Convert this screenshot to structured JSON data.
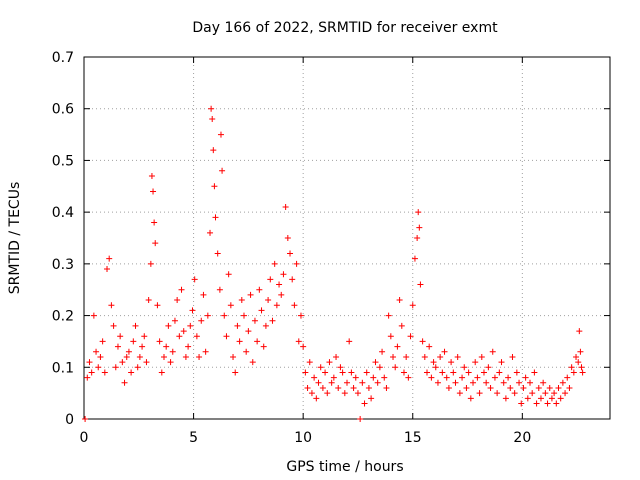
{
  "chart_data": {
    "type": "scatter",
    "title": "Day 166 of 2022, SRMTID for receiver exmt",
    "xlabel": "GPS time / hours",
    "ylabel": "SRMTID / TECUs",
    "xlim": [
      0,
      24
    ],
    "ylim": [
      0,
      0.7
    ],
    "xticks": [
      {
        "value": 0,
        "label": "0"
      },
      {
        "value": 5,
        "label": "5"
      },
      {
        "value": 10,
        "label": "10"
      },
      {
        "value": 15,
        "label": "15"
      },
      {
        "value": 20,
        "label": "20"
      }
    ],
    "yticks": [
      {
        "value": 0,
        "label": "0"
      },
      {
        "value": 0.1,
        "label": "0.1"
      },
      {
        "value": 0.2,
        "label": "0.2"
      },
      {
        "value": 0.3,
        "label": "0.3"
      },
      {
        "value": 0.4,
        "label": "0.4"
      },
      {
        "value": 0.5,
        "label": "0.5"
      },
      {
        "value": 0.6,
        "label": "0.6"
      },
      {
        "value": 0.7,
        "label": "0.7"
      }
    ],
    "grid": true,
    "marker": "+",
    "series": [
      {
        "name": "SRMTID",
        "color": "#ff0000",
        "points": [
          [
            0.05,
            0.0
          ],
          [
            0.15,
            0.08
          ],
          [
            0.25,
            0.11
          ],
          [
            0.35,
            0.09
          ],
          [
            0.45,
            0.2
          ],
          [
            0.55,
            0.13
          ],
          [
            0.65,
            0.1
          ],
          [
            0.75,
            0.12
          ],
          [
            0.85,
            0.15
          ],
          [
            0.95,
            0.09
          ],
          [
            1.05,
            0.29
          ],
          [
            1.15,
            0.31
          ],
          [
            1.25,
            0.22
          ],
          [
            1.35,
            0.18
          ],
          [
            1.45,
            0.1
          ],
          [
            1.55,
            0.14
          ],
          [
            1.65,
            0.16
          ],
          [
            1.75,
            0.11
          ],
          [
            1.85,
            0.07
          ],
          [
            1.95,
            0.12
          ],
          [
            2.05,
            0.13
          ],
          [
            2.15,
            0.09
          ],
          [
            2.25,
            0.15
          ],
          [
            2.35,
            0.18
          ],
          [
            2.45,
            0.1
          ],
          [
            2.55,
            0.12
          ],
          [
            2.65,
            0.14
          ],
          [
            2.75,
            0.16
          ],
          [
            2.85,
            0.11
          ],
          [
            2.95,
            0.23
          ],
          [
            3.05,
            0.3
          ],
          [
            3.1,
            0.47
          ],
          [
            3.15,
            0.44
          ],
          [
            3.2,
            0.38
          ],
          [
            3.25,
            0.34
          ],
          [
            3.35,
            0.22
          ],
          [
            3.45,
            0.15
          ],
          [
            3.55,
            0.09
          ],
          [
            3.65,
            0.12
          ],
          [
            3.75,
            0.14
          ],
          [
            3.85,
            0.18
          ],
          [
            3.95,
            0.11
          ],
          [
            4.05,
            0.13
          ],
          [
            4.15,
            0.19
          ],
          [
            4.25,
            0.23
          ],
          [
            4.35,
            0.16
          ],
          [
            4.45,
            0.25
          ],
          [
            4.55,
            0.17
          ],
          [
            4.65,
            0.12
          ],
          [
            4.75,
            0.14
          ],
          [
            4.85,
            0.18
          ],
          [
            4.95,
            0.21
          ],
          [
            5.05,
            0.27
          ],
          [
            5.15,
            0.16
          ],
          [
            5.25,
            0.12
          ],
          [
            5.35,
            0.19
          ],
          [
            5.45,
            0.24
          ],
          [
            5.55,
            0.13
          ],
          [
            5.65,
            0.2
          ],
          [
            5.75,
            0.36
          ],
          [
            5.8,
            0.6
          ],
          [
            5.85,
            0.58
          ],
          [
            5.9,
            0.52
          ],
          [
            5.95,
            0.45
          ],
          [
            6.0,
            0.39
          ],
          [
            6.1,
            0.32
          ],
          [
            6.2,
            0.25
          ],
          [
            6.25,
            0.55
          ],
          [
            6.3,
            0.48
          ],
          [
            6.4,
            0.2
          ],
          [
            6.5,
            0.16
          ],
          [
            6.6,
            0.28
          ],
          [
            6.7,
            0.22
          ],
          [
            6.8,
            0.12
          ],
          [
            6.9,
            0.09
          ],
          [
            7.0,
            0.18
          ],
          [
            7.1,
            0.15
          ],
          [
            7.2,
            0.23
          ],
          [
            7.3,
            0.2
          ],
          [
            7.4,
            0.13
          ],
          [
            7.5,
            0.17
          ],
          [
            7.6,
            0.24
          ],
          [
            7.7,
            0.11
          ],
          [
            7.8,
            0.19
          ],
          [
            7.9,
            0.15
          ],
          [
            8.0,
            0.25
          ],
          [
            8.1,
            0.21
          ],
          [
            8.2,
            0.14
          ],
          [
            8.3,
            0.18
          ],
          [
            8.4,
            0.23
          ],
          [
            8.5,
            0.27
          ],
          [
            8.6,
            0.19
          ],
          [
            8.7,
            0.3
          ],
          [
            8.8,
            0.22
          ],
          [
            8.9,
            0.26
          ],
          [
            9.0,
            0.24
          ],
          [
            9.1,
            0.28
          ],
          [
            9.2,
            0.41
          ],
          [
            9.3,
            0.35
          ],
          [
            9.4,
            0.32
          ],
          [
            9.5,
            0.27
          ],
          [
            9.6,
            0.22
          ],
          [
            9.7,
            0.3
          ],
          [
            9.8,
            0.15
          ],
          [
            9.9,
            0.2
          ],
          [
            10.0,
            0.14
          ],
          [
            10.1,
            0.09
          ],
          [
            10.2,
            0.06
          ],
          [
            10.3,
            0.11
          ],
          [
            10.4,
            0.05
          ],
          [
            10.5,
            0.08
          ],
          [
            10.6,
            0.04
          ],
          [
            10.7,
            0.07
          ],
          [
            10.8,
            0.1
          ],
          [
            10.9,
            0.06
          ],
          [
            11.0,
            0.09
          ],
          [
            11.1,
            0.05
          ],
          [
            11.2,
            0.11
          ],
          [
            11.3,
            0.07
          ],
          [
            11.4,
            0.08
          ],
          [
            11.5,
            0.12
          ],
          [
            11.6,
            0.06
          ],
          [
            11.7,
            0.1
          ],
          [
            11.8,
            0.09
          ],
          [
            11.9,
            0.05
          ],
          [
            12.0,
            0.07
          ],
          [
            12.1,
            0.15
          ],
          [
            12.2,
            0.09
          ],
          [
            12.3,
            0.06
          ],
          [
            12.4,
            0.08
          ],
          [
            12.5,
            0.05
          ],
          [
            12.6,
            0.0
          ],
          [
            12.7,
            0.07
          ],
          [
            12.8,
            0.03
          ],
          [
            12.9,
            0.09
          ],
          [
            13.0,
            0.06
          ],
          [
            13.1,
            0.04
          ],
          [
            13.2,
            0.08
          ],
          [
            13.3,
            0.11
          ],
          [
            13.4,
            0.07
          ],
          [
            13.5,
            0.1
          ],
          [
            13.6,
            0.13
          ],
          [
            13.7,
            0.08
          ],
          [
            13.8,
            0.06
          ],
          [
            13.9,
            0.2
          ],
          [
            14.0,
            0.16
          ],
          [
            14.1,
            0.12
          ],
          [
            14.2,
            0.1
          ],
          [
            14.3,
            0.14
          ],
          [
            14.4,
            0.23
          ],
          [
            14.5,
            0.18
          ],
          [
            14.6,
            0.09
          ],
          [
            14.7,
            0.12
          ],
          [
            14.8,
            0.08
          ],
          [
            14.9,
            0.16
          ],
          [
            15.0,
            0.22
          ],
          [
            15.1,
            0.31
          ],
          [
            15.2,
            0.35
          ],
          [
            15.25,
            0.4
          ],
          [
            15.3,
            0.37
          ],
          [
            15.35,
            0.26
          ],
          [
            15.45,
            0.15
          ],
          [
            15.55,
            0.12
          ],
          [
            15.65,
            0.09
          ],
          [
            15.75,
            0.14
          ],
          [
            15.85,
            0.08
          ],
          [
            15.95,
            0.11
          ],
          [
            16.05,
            0.1
          ],
          [
            16.15,
            0.07
          ],
          [
            16.25,
            0.12
          ],
          [
            16.35,
            0.09
          ],
          [
            16.45,
            0.13
          ],
          [
            16.55,
            0.08
          ],
          [
            16.65,
            0.06
          ],
          [
            16.75,
            0.11
          ],
          [
            16.85,
            0.09
          ],
          [
            16.95,
            0.07
          ],
          [
            17.05,
            0.12
          ],
          [
            17.15,
            0.05
          ],
          [
            17.25,
            0.08
          ],
          [
            17.35,
            0.1
          ],
          [
            17.45,
            0.06
          ],
          [
            17.55,
            0.09
          ],
          [
            17.65,
            0.04
          ],
          [
            17.75,
            0.07
          ],
          [
            17.85,
            0.11
          ],
          [
            17.95,
            0.08
          ],
          [
            18.05,
            0.05
          ],
          [
            18.15,
            0.12
          ],
          [
            18.25,
            0.09
          ],
          [
            18.35,
            0.07
          ],
          [
            18.45,
            0.1
          ],
          [
            18.55,
            0.06
          ],
          [
            18.65,
            0.13
          ],
          [
            18.75,
            0.08
          ],
          [
            18.85,
            0.05
          ],
          [
            18.95,
            0.09
          ],
          [
            19.05,
            0.11
          ],
          [
            19.15,
            0.07
          ],
          [
            19.25,
            0.04
          ],
          [
            19.35,
            0.08
          ],
          [
            19.45,
            0.06
          ],
          [
            19.55,
            0.12
          ],
          [
            19.65,
            0.05
          ],
          [
            19.75,
            0.09
          ],
          [
            19.85,
            0.07
          ],
          [
            19.95,
            0.03
          ],
          [
            20.05,
            0.06
          ],
          [
            20.15,
            0.08
          ],
          [
            20.25,
            0.04
          ],
          [
            20.35,
            0.07
          ],
          [
            20.45,
            0.05
          ],
          [
            20.55,
            0.09
          ],
          [
            20.65,
            0.03
          ],
          [
            20.75,
            0.06
          ],
          [
            20.85,
            0.04
          ],
          [
            20.95,
            0.07
          ],
          [
            21.05,
            0.05
          ],
          [
            21.15,
            0.03
          ],
          [
            21.25,
            0.06
          ],
          [
            21.35,
            0.04
          ],
          [
            21.45,
            0.05
          ],
          [
            21.55,
            0.03
          ],
          [
            21.65,
            0.06
          ],
          [
            21.75,
            0.04
          ],
          [
            21.85,
            0.07
          ],
          [
            21.95,
            0.05
          ],
          [
            22.05,
            0.08
          ],
          [
            22.15,
            0.06
          ],
          [
            22.25,
            0.1
          ],
          [
            22.35,
            0.09
          ],
          [
            22.45,
            0.12
          ],
          [
            22.55,
            0.11
          ],
          [
            22.6,
            0.17
          ],
          [
            22.65,
            0.13
          ],
          [
            22.7,
            0.1
          ],
          [
            22.75,
            0.09
          ]
        ]
      }
    ]
  }
}
